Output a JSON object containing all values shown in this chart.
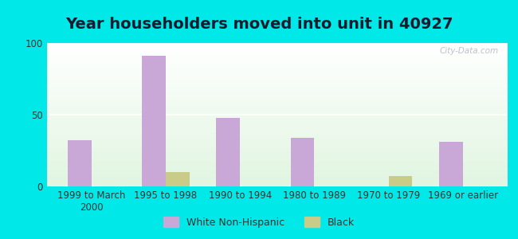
{
  "title": "Year householders moved into unit in 40927",
  "categories": [
    "1999 to March\n2000",
    "1995 to 1998",
    "1990 to 1994",
    "1980 to 1989",
    "1970 to 1979",
    "1969 or earlier"
  ],
  "white_values": [
    32,
    91,
    48,
    34,
    0,
    31
  ],
  "black_values": [
    0,
    10,
    0,
    0,
    7,
    0
  ],
  "white_color": "#c9a8d8",
  "black_color": "#c8cc88",
  "ylim": [
    0,
    100
  ],
  "yticks": [
    0,
    50,
    100
  ],
  "bg_outer": "#00e8e8",
  "grid_color": "#ffffff",
  "watermark": "City-Data.com",
  "bar_width": 0.32,
  "title_fontsize": 14,
  "tick_fontsize": 8.5,
  "legend_fontsize": 9
}
